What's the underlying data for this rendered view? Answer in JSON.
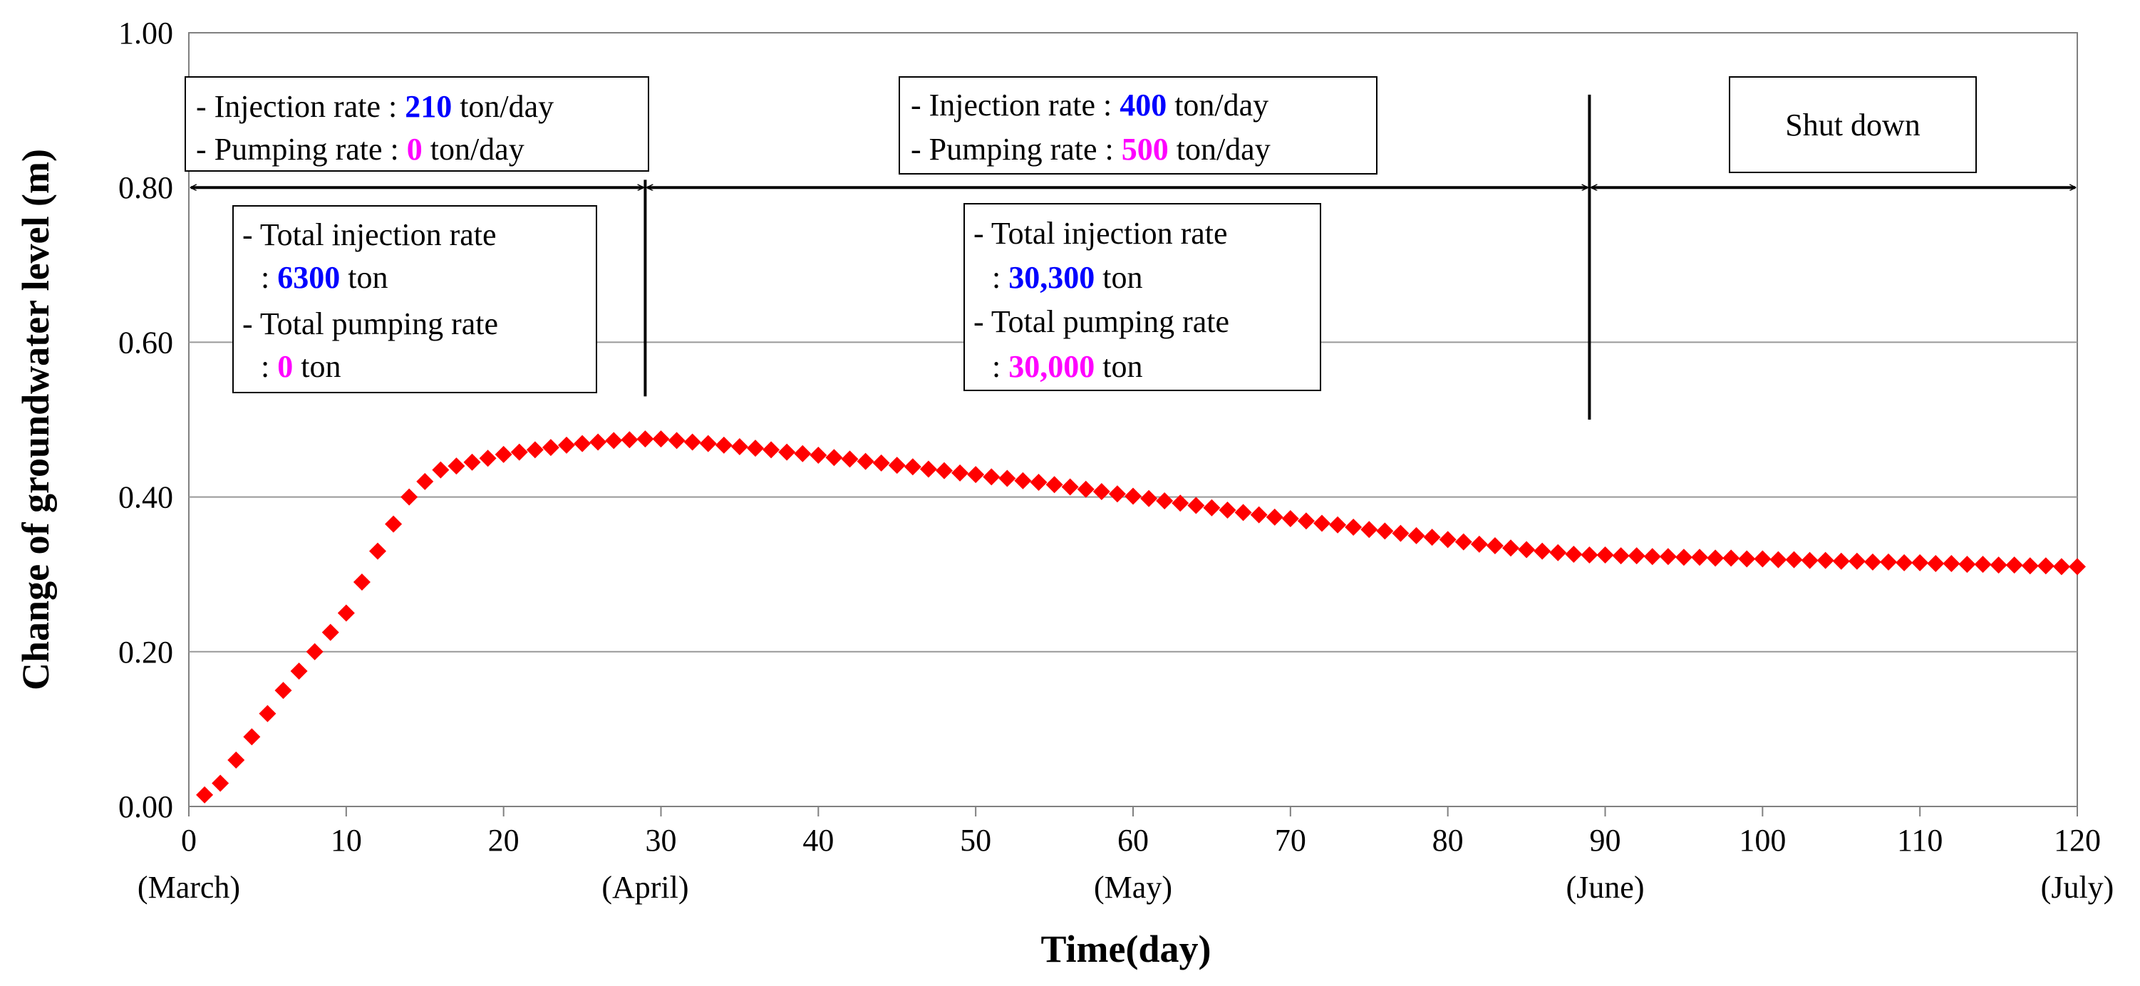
{
  "chart_data": {
    "type": "scatter",
    "xlabel": "Time(day)",
    "ylabel": "Change of groundwater level (m)",
    "xlim": [
      0,
      120
    ],
    "ylim": [
      0,
      1.0
    ],
    "grid": "horizontal",
    "xticks": [
      0,
      10,
      20,
      30,
      40,
      50,
      60,
      70,
      80,
      90,
      100,
      110,
      120
    ],
    "yticks": [
      "0.00",
      "0.20",
      "0.40",
      "0.60",
      "0.80",
      "1.00"
    ],
    "month_labels": [
      {
        "x": 0,
        "label": "(March)"
      },
      {
        "x": 29,
        "label": "(April)"
      },
      {
        "x": 60,
        "label": "(May)"
      },
      {
        "x": 90,
        "label": "(June)"
      },
      {
        "x": 120,
        "label": "(July)"
      }
    ],
    "series": [
      {
        "name": "Change of groundwater level",
        "marker": "diamond",
        "color": "#ff0000",
        "x": [
          1,
          2,
          3,
          4,
          5,
          6,
          7,
          8,
          9,
          10,
          11,
          12,
          13,
          14,
          15,
          16,
          17,
          18,
          19,
          20,
          21,
          22,
          23,
          24,
          25,
          26,
          27,
          28,
          29,
          30,
          31,
          32,
          33,
          34,
          35,
          36,
          37,
          38,
          39,
          40,
          41,
          42,
          43,
          44,
          45,
          46,
          47,
          48,
          49,
          50,
          51,
          52,
          53,
          54,
          55,
          56,
          57,
          58,
          59,
          60,
          61,
          62,
          63,
          64,
          65,
          66,
          67,
          68,
          69,
          70,
          71,
          72,
          73,
          74,
          75,
          76,
          77,
          78,
          79,
          80,
          81,
          82,
          83,
          84,
          85,
          86,
          87,
          88,
          89,
          90,
          91,
          92,
          93,
          94,
          95,
          96,
          97,
          98,
          99,
          100,
          101,
          102,
          103,
          104,
          105,
          106,
          107,
          108,
          109,
          110,
          111,
          112,
          113,
          114,
          115,
          116,
          117,
          118,
          119,
          120
        ],
        "y": [
          0.015,
          0.03,
          0.06,
          0.09,
          0.12,
          0.15,
          0.175,
          0.2,
          0.225,
          0.25,
          0.29,
          0.33,
          0.365,
          0.4,
          0.42,
          0.435,
          0.44,
          0.445,
          0.45,
          0.455,
          0.458,
          0.461,
          0.464,
          0.467,
          0.469,
          0.471,
          0.473,
          0.474,
          0.475,
          0.475,
          0.473,
          0.471,
          0.469,
          0.467,
          0.465,
          0.463,
          0.461,
          0.458,
          0.456,
          0.454,
          0.451,
          0.449,
          0.446,
          0.444,
          0.441,
          0.439,
          0.436,
          0.434,
          0.431,
          0.429,
          0.426,
          0.424,
          0.421,
          0.419,
          0.416,
          0.413,
          0.41,
          0.407,
          0.404,
          0.401,
          0.398,
          0.395,
          0.392,
          0.389,
          0.386,
          0.383,
          0.38,
          0.377,
          0.374,
          0.372,
          0.369,
          0.366,
          0.364,
          0.361,
          0.358,
          0.356,
          0.353,
          0.35,
          0.348,
          0.345,
          0.342,
          0.339,
          0.337,
          0.334,
          0.332,
          0.33,
          0.328,
          0.326,
          0.325,
          0.325,
          0.324,
          0.324,
          0.323,
          0.323,
          0.322,
          0.322,
          0.321,
          0.321,
          0.32,
          0.32,
          0.319,
          0.319,
          0.318,
          0.318,
          0.317,
          0.317,
          0.316,
          0.316,
          0.315,
          0.315,
          0.314,
          0.314,
          0.313,
          0.313,
          0.312,
          0.312,
          0.311,
          0.311,
          0.31,
          0.31
        ]
      }
    ],
    "annotations": {
      "phase_arrows": [
        {
          "x_start": 0,
          "x_end": 29,
          "y": 0.8
        },
        {
          "x_start": 29,
          "x_end": 89,
          "y": 0.8
        },
        {
          "x_start": 89,
          "x_end": 120,
          "y": 0.8
        }
      ],
      "divider_lines": [
        {
          "x": 29,
          "y_start": 0.53,
          "y_end": 0.81
        },
        {
          "x": 89,
          "y_start": 0.5,
          "y_end": 0.92
        }
      ],
      "phase1_rates": {
        "injection_label": "- Injection rate : ",
        "injection_value": "210",
        "injection_unit": " ton/day",
        "pumping_label": "- Pumping rate : ",
        "pumping_value": "0",
        "pumping_unit": " ton/day"
      },
      "phase1_totals": {
        "injection_label": "- Total injection rate",
        "injection_prefix": ": ",
        "injection_value": "6300",
        "injection_unit": " ton",
        "pumping_label": "- Total  pumping rate",
        "pumping_prefix": ": ",
        "pumping_value": "0",
        "pumping_unit": " ton"
      },
      "phase2_rates": {
        "injection_label": "- Injection rate : ",
        "injection_value": "400",
        "injection_unit": " ton/day",
        "pumping_label": "- Pumping rate : ",
        "pumping_value": "500",
        "pumping_unit": " ton/day"
      },
      "phase2_totals": {
        "injection_label": "- Total injection rate",
        "injection_prefix": ": ",
        "injection_value": "30,300",
        "injection_unit": " ton",
        "pumping_label": "- Total pumping rate",
        "pumping_prefix": ": ",
        "pumping_value": "30,000",
        "pumping_unit": " ton"
      },
      "phase3_label": "Shut down"
    },
    "colors": {
      "marker": "#ff0000",
      "injection_value": "#0000ff",
      "pumping_value": "#ff00ff",
      "grid": "#999999",
      "axis": "#808080"
    }
  }
}
